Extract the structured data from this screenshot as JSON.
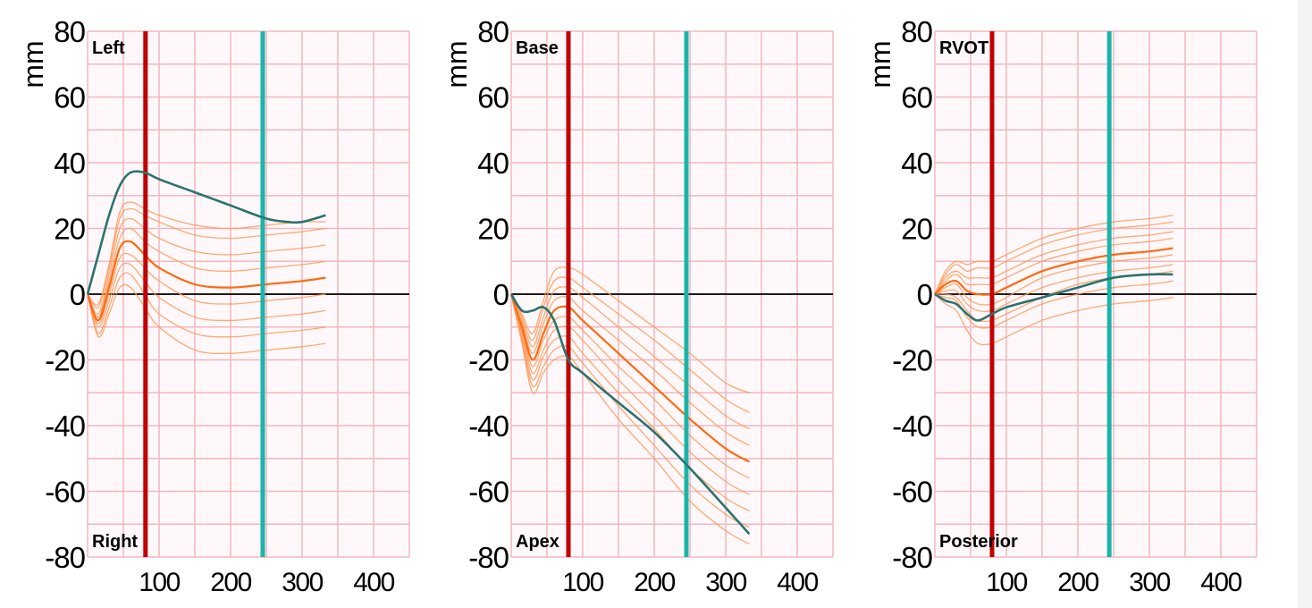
{
  "colors": {
    "grid": "#f0b8c0",
    "plot_background": "#fff8fa",
    "normal_curve": "#ff9a5a",
    "normal_mean": "#ff6a10",
    "patient_curve": "#2a7370",
    "marker_red": "#c00000",
    "marker_teal": "#1ab5aa",
    "zero_line": "#000000"
  },
  "chart_data": [
    {
      "type": "line",
      "ylabel": "mm",
      "ylim": [
        -80,
        80
      ],
      "xlim": [
        0,
        450
      ],
      "yticks": [
        "80",
        "60",
        "40",
        "20",
        "0",
        "-20",
        "-40",
        "-60",
        "-80"
      ],
      "ytick_values": [
        80,
        60,
        40,
        20,
        0,
        -20,
        -40,
        -60,
        -80
      ],
      "xticks": [
        "100",
        "200",
        "300",
        "400"
      ],
      "xtick_values": [
        100,
        200,
        300,
        400
      ],
      "grid": true,
      "top_label": "Left",
      "bottom_label": "Right",
      "markers": {
        "red": 81,
        "teal": 245
      },
      "x": [
        0,
        15,
        30,
        45,
        60,
        80,
        100,
        150,
        200,
        250,
        300,
        333
      ],
      "normal_mean": [
        0,
        -8,
        2,
        14,
        16,
        12,
        8,
        3,
        2,
        3,
        4,
        5
      ],
      "normal_curves": [
        [
          0,
          -13,
          -6,
          2,
          2,
          -4,
          -10,
          -17,
          -18,
          -17,
          -16,
          -15
        ],
        [
          0,
          -12,
          -4,
          5,
          6,
          0,
          -6,
          -12,
          -13,
          -12,
          -11,
          -10
        ],
        [
          0,
          -10,
          -2,
          8,
          9,
          4,
          -1,
          -7,
          -8,
          -7,
          -6,
          -5
        ],
        [
          0,
          -9,
          0,
          11,
          12,
          8,
          4,
          -2,
          -3,
          -2,
          -1,
          0
        ],
        [
          0,
          -7,
          4,
          17,
          20,
          16,
          13,
          8,
          7,
          8,
          9,
          10
        ],
        [
          0,
          -6,
          6,
          20,
          23,
          20,
          17,
          13,
          12,
          13,
          14,
          15
        ],
        [
          0,
          -4,
          8,
          23,
          26,
          24,
          22,
          18,
          17,
          18,
          19,
          20
        ],
        [
          0,
          -3,
          9,
          25,
          28,
          26,
          24,
          21,
          20,
          21,
          22,
          22
        ]
      ],
      "patient": {
        "x": [
          0,
          15,
          30,
          45,
          60,
          80,
          100,
          150,
          200,
          250,
          280,
          300,
          333
        ],
        "y": [
          0,
          12,
          24,
          33,
          37,
          37,
          35,
          31,
          27,
          23,
          22,
          22,
          24
        ]
      }
    },
    {
      "type": "line",
      "ylabel": "mm",
      "ylim": [
        -80,
        80
      ],
      "xlim": [
        0,
        450
      ],
      "yticks": [
        "80",
        "60",
        "40",
        "20",
        "0",
        "-20",
        "-40",
        "-60",
        "-80"
      ],
      "ytick_values": [
        80,
        60,
        40,
        20,
        0,
        -20,
        -40,
        -60,
        -80
      ],
      "xticks": [
        "100",
        "200",
        "300",
        "400"
      ],
      "xtick_values": [
        100,
        200,
        300,
        400
      ],
      "grid": true,
      "top_label": "Base",
      "bottom_label": "Apex",
      "markers": {
        "red": 80,
        "teal": 245
      },
      "x": [
        0,
        15,
        30,
        45,
        60,
        80,
        100,
        150,
        200,
        250,
        300,
        333
      ],
      "normal_mean": [
        0,
        -10,
        -20,
        -12,
        -5,
        -4,
        -8,
        -18,
        -28,
        -38,
        -47,
        -51
      ],
      "normal_curves": [
        [
          0,
          -15,
          -30,
          -24,
          -20,
          -19,
          -24,
          -38,
          -50,
          -63,
          -72,
          -76
        ],
        [
          0,
          -14,
          -28,
          -22,
          -17,
          -16,
          -21,
          -34,
          -46,
          -58,
          -67,
          -71
        ],
        [
          0,
          -13,
          -26,
          -19,
          -14,
          -13,
          -18,
          -30,
          -41,
          -53,
          -62,
          -66
        ],
        [
          0,
          -12,
          -24,
          -17,
          -11,
          -10,
          -14,
          -26,
          -37,
          -48,
          -57,
          -61
        ],
        [
          0,
          -11,
          -22,
          -14,
          -8,
          -7,
          -11,
          -22,
          -32,
          -43,
          -52,
          -56
        ],
        [
          0,
          -9,
          -18,
          -9,
          -2,
          -1,
          -5,
          -14,
          -23,
          -33,
          -42,
          -46
        ],
        [
          0,
          -8,
          -16,
          -7,
          1,
          2,
          -1,
          -10,
          -19,
          -28,
          -37,
          -41
        ],
        [
          0,
          -7,
          -14,
          -4,
          4,
          5,
          2,
          -6,
          -14,
          -23,
          -32,
          -36
        ],
        [
          0,
          -6,
          -12,
          -2,
          7,
          8,
          6,
          -2,
          -10,
          -18,
          -27,
          -30
        ]
      ],
      "patient": {
        "x": [
          0,
          15,
          30,
          45,
          60,
          80,
          100,
          150,
          200,
          250,
          300,
          333
        ],
        "y": [
          0,
          -5,
          -5,
          -4,
          -8,
          -20,
          -24,
          -33,
          -42,
          -53,
          -65,
          -73
        ]
      }
    },
    {
      "type": "line",
      "ylabel": "mm",
      "ylim": [
        -80,
        80
      ],
      "xlim": [
        0,
        450
      ],
      "yticks": [
        "80",
        "60",
        "40",
        "20",
        "0",
        "-20",
        "-40",
        "-60",
        "-80"
      ],
      "ytick_values": [
        80,
        60,
        40,
        20,
        0,
        -20,
        -40,
        -60,
        -80
      ],
      "xticks": [
        "100",
        "200",
        "300",
        "400"
      ],
      "xtick_values": [
        100,
        200,
        300,
        400
      ],
      "grid": true,
      "top_label": "RVOT",
      "bottom_label": "Posterior",
      "markers": {
        "red": 80,
        "teal": 244
      },
      "x": [
        0,
        15,
        30,
        45,
        60,
        80,
        100,
        150,
        200,
        250,
        300,
        333
      ],
      "normal_mean": [
        0,
        3,
        4,
        1,
        0,
        0,
        2,
        7,
        10,
        12,
        13,
        14
      ],
      "normal_curves": [
        [
          0,
          -3,
          -5,
          -11,
          -15,
          -15,
          -13,
          -8,
          -5,
          -3,
          -2,
          -1
        ],
        [
          0,
          -1,
          -2,
          -7,
          -10,
          -10,
          -8,
          -3,
          0,
          2,
          3,
          4
        ],
        [
          0,
          0,
          -1,
          -5,
          -8,
          -8,
          -6,
          -1,
          3,
          5,
          6,
          7
        ],
        [
          0,
          1,
          1,
          -3,
          -5,
          -5,
          -3,
          2,
          5,
          7,
          8,
          9
        ],
        [
          0,
          2,
          3,
          -1,
          -3,
          -3,
          -1,
          5,
          8,
          10,
          11,
          12
        ],
        [
          0,
          4,
          6,
          3,
          3,
          3,
          5,
          10,
          13,
          15,
          16,
          17
        ],
        [
          0,
          5,
          7,
          5,
          5,
          5,
          7,
          12,
          15,
          17,
          18,
          19
        ],
        [
          0,
          6,
          9,
          7,
          8,
          8,
          10,
          15,
          18,
          20,
          21,
          22
        ],
        [
          0,
          7,
          10,
          9,
          10,
          10,
          12,
          17,
          20,
          22,
          23,
          24
        ]
      ],
      "patient": {
        "x": [
          0,
          15,
          30,
          45,
          60,
          80,
          100,
          150,
          200,
          250,
          300,
          333
        ],
        "y": [
          0,
          -2,
          -3,
          -6,
          -8,
          -6,
          -4,
          -1,
          2,
          5,
          6,
          6
        ]
      }
    }
  ]
}
